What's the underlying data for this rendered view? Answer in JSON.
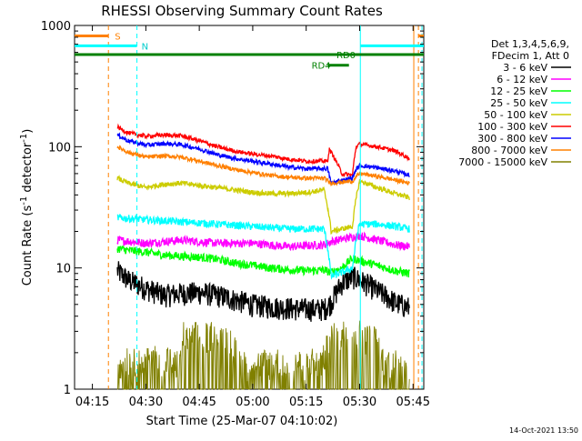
{
  "chart_data": {
    "type": "line",
    "title": "RHESSI Observing Summary Count Rates",
    "xlabel": "Start Time (25-Mar-07 04:10:02)",
    "ylabel_main": "Count Rate (s",
    "ylabel_sup1": "-1",
    "ylabel_mid": " detector",
    "ylabel_sup2": "-1",
    "ylabel_end": ")",
    "yscale": "log",
    "ylim": [
      1,
      1000
    ],
    "xlim_minutes": [
      0,
      98
    ],
    "xticks": [
      {
        "label": "04:15",
        "m": 5
      },
      {
        "label": "04:30",
        "m": 20
      },
      {
        "label": "04:45",
        "m": 35
      },
      {
        "label": "05:00",
        "m": 50
      },
      {
        "label": "05:15",
        "m": 65
      },
      {
        "label": "05:30",
        "m": 80
      },
      {
        "label": "05:45",
        "m": 95
      }
    ],
    "yticks": [
      {
        "label": "1",
        "v": 1
      },
      {
        "label": "10",
        "v": 10
      },
      {
        "label": "100",
        "v": 100
      },
      {
        "label": "1000",
        "v": 1000
      }
    ],
    "legend": {
      "header": [
        "Det 1,3,4,5,6,9,",
        "FDecim 1, Att 0"
      ],
      "placement": "right"
    },
    "series": [
      {
        "name": "3 - 6 keV",
        "color": "#000000",
        "x": [
          12,
          15,
          20,
          25,
          30,
          35,
          40,
          45,
          50,
          55,
          60,
          65,
          70,
          72,
          75,
          78,
          80,
          85,
          90,
          94
        ],
        "y": [
          9.5,
          8,
          6.8,
          6,
          6.2,
          6.3,
          6,
          5.5,
          5,
          4.8,
          4.7,
          4.6,
          4.6,
          5.2,
          7.5,
          8.5,
          8,
          6.5,
          5.2,
          4.7
        ]
      },
      {
        "name": "6 - 12 keV",
        "color": "#ff00ff",
        "x": [
          12,
          20,
          30,
          40,
          50,
          60,
          70,
          72,
          78,
          80,
          85,
          90,
          94
        ],
        "y": [
          17,
          16,
          17,
          16,
          16,
          15,
          15.5,
          16.5,
          18,
          18.5,
          17,
          15.5,
          15
        ]
      },
      {
        "name": "12 - 25 keV",
        "color": "#00ff00",
        "x": [
          12,
          15,
          20,
          25,
          30,
          35,
          40,
          45,
          50,
          55,
          60,
          65,
          70,
          72,
          75,
          78,
          80,
          85,
          90,
          94
        ],
        "y": [
          14.5,
          14,
          13.5,
          12.8,
          12.5,
          12.3,
          11.8,
          11,
          10.5,
          10,
          9.7,
          9.5,
          9.6,
          9.2,
          10,
          12,
          11.5,
          10.5,
          9.5,
          9
        ]
      },
      {
        "name": "25 - 50 keV",
        "color": "#00ffff",
        "x": [
          12,
          20,
          30,
          40,
          50,
          60,
          70,
          72,
          75,
          78,
          80,
          85,
          90,
          94
        ],
        "y": [
          26,
          25,
          24,
          23,
          22,
          21,
          21,
          8.5,
          9.2,
          10,
          23,
          23,
          22,
          21
        ]
      },
      {
        "name": "50 - 100 keV",
        "color": "#cccc00",
        "x": [
          12,
          15,
          20,
          25,
          30,
          35,
          40,
          45,
          50,
          55,
          60,
          65,
          70,
          72,
          75,
          78,
          80,
          85,
          90,
          94
        ],
        "y": [
          55,
          50,
          46,
          49,
          50,
          48,
          46,
          44,
          42,
          41,
          41,
          42,
          44,
          20,
          21,
          22,
          52,
          46,
          41,
          38
        ]
      },
      {
        "name": "100 - 300 keV",
        "color": "#ff0000",
        "x": [
          12,
          15,
          20,
          25,
          30,
          35,
          40,
          45,
          50,
          55,
          60,
          65,
          71,
          71.5,
          75,
          78,
          79,
          80,
          85,
          90,
          94
        ],
        "y": [
          145,
          130,
          122,
          125,
          123,
          112,
          100,
          92,
          87,
          84,
          79,
          76,
          76,
          95,
          60,
          58,
          100,
          105,
          100,
          92,
          80
        ]
      },
      {
        "name": "300 - 800 keV",
        "color": "#0000ff",
        "x": [
          12,
          15,
          20,
          25,
          30,
          35,
          40,
          45,
          50,
          55,
          60,
          65,
          71,
          72,
          75,
          78,
          79,
          80,
          85,
          90,
          94
        ],
        "y": [
          125,
          112,
          103,
          106,
          104,
          96,
          86,
          80,
          76,
          72,
          68,
          66,
          66,
          50,
          53,
          55,
          65,
          70,
          67,
          63,
          58
        ]
      },
      {
        "name": "800 - 7000 keV",
        "color": "#ff8000",
        "x": [
          12,
          15,
          20,
          25,
          30,
          35,
          40,
          45,
          50,
          55,
          60,
          65,
          70,
          72,
          75,
          78,
          80,
          85,
          90,
          94
        ],
        "y": [
          100,
          90,
          82,
          84,
          82,
          76,
          70,
          65,
          61,
          58,
          56,
          55,
          55,
          50,
          51,
          52,
          60,
          57,
          53,
          50
        ]
      },
      {
        "name": "7000 - 15000 keV",
        "color": "#808000",
        "x": [
          12,
          14,
          16,
          18,
          20,
          22,
          24,
          26,
          28,
          30,
          30.5,
          32,
          34,
          36,
          38,
          40,
          42,
          44,
          46,
          48,
          50,
          52,
          54,
          56,
          58,
          60,
          62,
          64,
          66,
          68,
          70,
          72,
          74,
          76,
          78,
          80,
          82,
          84,
          86,
          88,
          90,
          92,
          94
        ],
        "y": [
          1.5,
          2,
          1.6,
          1.8,
          1.6,
          2,
          1.5,
          1.8,
          1.6,
          1.7,
          2.8,
          2.5,
          2.8,
          2.6,
          2.9,
          2.6,
          2.7,
          2.5,
          1.7,
          1.6,
          1.8,
          1.6,
          1.7,
          1.6,
          1.8,
          1.6,
          1.7,
          1.6,
          1.8,
          1.6,
          1.8,
          2.8,
          2.6,
          3,
          2.7,
          2.9,
          2.6,
          2.8,
          1.8,
          1.7,
          1.8,
          1.6,
          1.7
        ]
      }
    ],
    "flags": [
      {
        "label": "S",
        "color": "#ff8000",
        "y": 820,
        "segments": [
          [
            0,
            9.5
          ],
          [
            96.5,
            98
          ]
        ],
        "label_m": 11.3
      },
      {
        "label": "N",
        "color": "#00ffff",
        "y": 680,
        "segments": [
          [
            0,
            17.5
          ],
          [
            80.3,
            98
          ]
        ],
        "label_m": 18.8
      },
      {
        "label": "RD0",
        "color": "#008000",
        "y": 575,
        "segments": [
          [
            0,
            98
          ]
        ],
        "label_m": 73.5
      },
      {
        "label": "RD4",
        "color": "#008000",
        "y": 470,
        "segments": [
          [
            71,
            77
          ]
        ],
        "label_m": 66.5
      }
    ],
    "vlines": [
      {
        "m": 9.5,
        "color": "#ff8000",
        "dash": true
      },
      {
        "m": 17.5,
        "color": "#00ffff",
        "dash": true
      },
      {
        "m": 80.2,
        "color": "#00ffff",
        "dash": false
      },
      {
        "m": 95.2,
        "color": "#ff8000",
        "dash": false
      },
      {
        "m": 96.5,
        "color": "#ff8000",
        "dash": true
      },
      {
        "m": 97.5,
        "color": "#00ffff",
        "dash": true
      }
    ],
    "footer": "14-Oct-2021 13:50"
  }
}
